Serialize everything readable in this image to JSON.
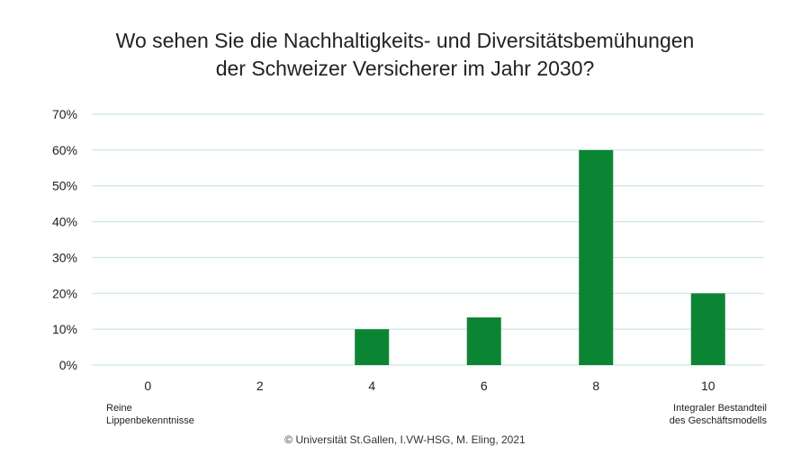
{
  "title": {
    "line1": "Wo sehen Sie die Nachhaltigkeits- und Diversitätsbemühungen",
    "line2": "der Schweizer Versicherer im Jahr 2030?"
  },
  "chart_data": {
    "type": "bar",
    "title": "Wo sehen Sie die Nachhaltigkeits- und Diversitätsbemühungen der Schweizer Versicherer im Jahr 2030?",
    "categories": [
      "0",
      "2",
      "4",
      "6",
      "8",
      "10"
    ],
    "values": [
      0,
      0,
      10,
      13.3,
      60,
      20
    ],
    "value_unit": "%",
    "xlabel": "",
    "ylabel": "",
    "ylim": [
      0,
      70
    ],
    "yticks": [
      "0%",
      "10%",
      "20%",
      "30%",
      "40%",
      "50%",
      "60%",
      "70%"
    ],
    "grid": true,
    "bar_color": "#0b8534",
    "grid_color": "#bfe0dd",
    "annotations": {
      "low_end_line1": "Reine",
      "low_end_line2": "Lippenbekenntnisse",
      "high_end_line1": "Integraler Bestandteil",
      "high_end_line2": "des Geschäftsmodells"
    }
  },
  "footer": {
    "copyright": "© Universität St.Gallen, I.VW-HSG, M. Eling, 2021"
  }
}
